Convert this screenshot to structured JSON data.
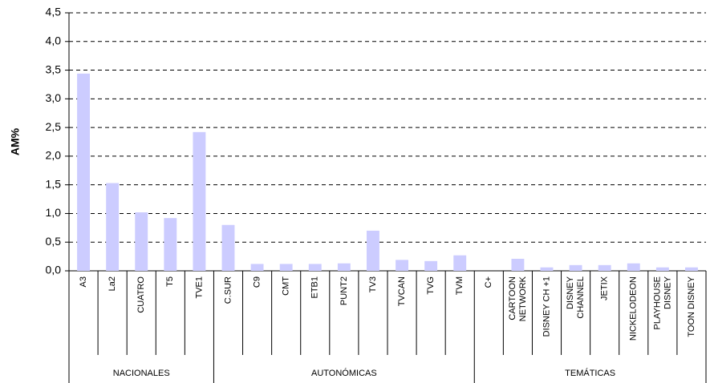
{
  "chart_data": {
    "type": "bar",
    "y_label": "AM%",
    "color": "#ccccff",
    "ylim": [
      0,
      4.5
    ],
    "yticks": [
      {
        "value": 0,
        "label": "0,0"
      },
      {
        "value": 0.5,
        "label": "0,5"
      },
      {
        "value": 1,
        "label": "1,0"
      },
      {
        "value": 1.5,
        "label": "1,5"
      },
      {
        "value": 2,
        "label": "2,0"
      },
      {
        "value": 2.5,
        "label": "2,5"
      },
      {
        "value": 3,
        "label": "3,0"
      },
      {
        "value": 3.5,
        "label": "3,5"
      },
      {
        "value": 4,
        "label": "4,0"
      },
      {
        "value": 4.5,
        "label": "4,5"
      }
    ],
    "grid": true,
    "groups": [
      {
        "name": "NACIONALES",
        "categories": [
          [
            "A3"
          ],
          [
            "La2"
          ],
          [
            "CUATRO"
          ],
          [
            "T5"
          ],
          [
            "TVE1"
          ]
        ],
        "values": [
          3.44,
          1.53,
          1.02,
          0.92,
          2.42
        ]
      },
      {
        "name": "AUTONÓMICAS",
        "categories": [
          [
            "C.SUR"
          ],
          [
            "C9"
          ],
          [
            "CMT"
          ],
          [
            "ETB1"
          ],
          [
            "PUNT2"
          ],
          [
            "TV3"
          ],
          [
            "TVCAN"
          ],
          [
            "TVG"
          ],
          [
            "TVM"
          ]
        ],
        "values": [
          0.8,
          0.12,
          0.12,
          0.12,
          0.13,
          0.7,
          0.19,
          0.17,
          0.27
        ]
      },
      {
        "name": "TEMÁTICAS",
        "categories": [
          [
            "C+"
          ],
          [
            "CARTOON",
            "NETWORK"
          ],
          [
            "DISNEY CH +1"
          ],
          [
            "DISNEY",
            "CHANNEL"
          ],
          [
            "JETIX"
          ],
          [
            "NICKELODEON"
          ],
          [
            "PLAYHOUSE",
            "DISNEY"
          ],
          [
            "TOON DISNEY"
          ]
        ],
        "values": [
          0,
          0.21,
          0.06,
          0.1,
          0.1,
          0.13,
          0.06,
          0.06
        ]
      }
    ]
  }
}
